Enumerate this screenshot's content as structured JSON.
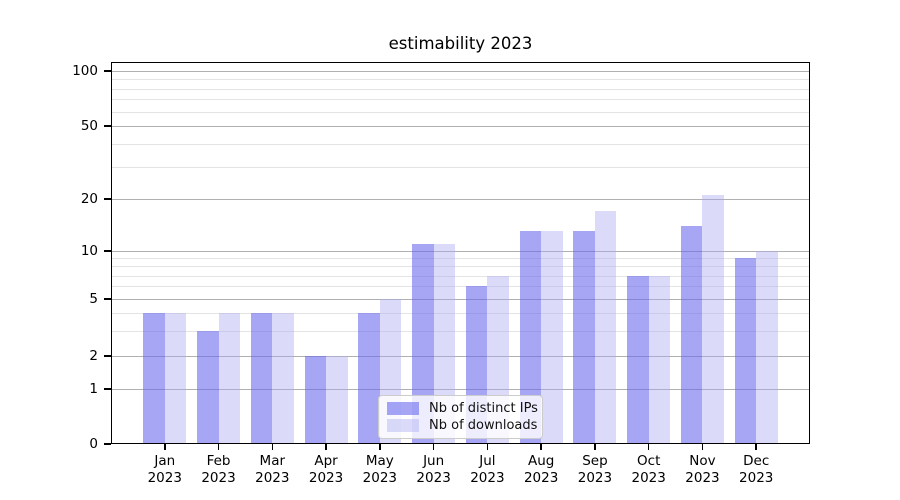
{
  "chart_data": {
    "type": "bar",
    "title": "estimability 2023",
    "categories": [
      "Jan",
      "Feb",
      "Mar",
      "Apr",
      "May",
      "Jun",
      "Jul",
      "Aug",
      "Sep",
      "Oct",
      "Nov",
      "Dec"
    ],
    "category_year": "2023",
    "series": [
      {
        "name": "Nb of distinct IPs",
        "color": "#6666ee",
        "alpha": 0.58,
        "values": [
          4,
          3,
          4,
          2,
          4,
          11,
          6,
          13,
          13,
          7,
          14,
          9
        ]
      },
      {
        "name": "Nb of downloads",
        "color": "#aaaaf0",
        "alpha": 0.42,
        "values": [
          4,
          4,
          4,
          2,
          5,
          11,
          7,
          13,
          17,
          7,
          21,
          10
        ]
      }
    ],
    "xlabel": "",
    "ylabel": "",
    "yscale": "symlog",
    "ylim": [
      0,
      110
    ],
    "y_major_ticks": [
      0,
      1,
      2,
      5,
      10,
      20,
      50,
      100
    ],
    "y_minor_gridlines": [
      3,
      4,
      6,
      7,
      8,
      9,
      30,
      40,
      60,
      70,
      80,
      90
    ],
    "grid": "on",
    "legend_position": "lower center"
  }
}
